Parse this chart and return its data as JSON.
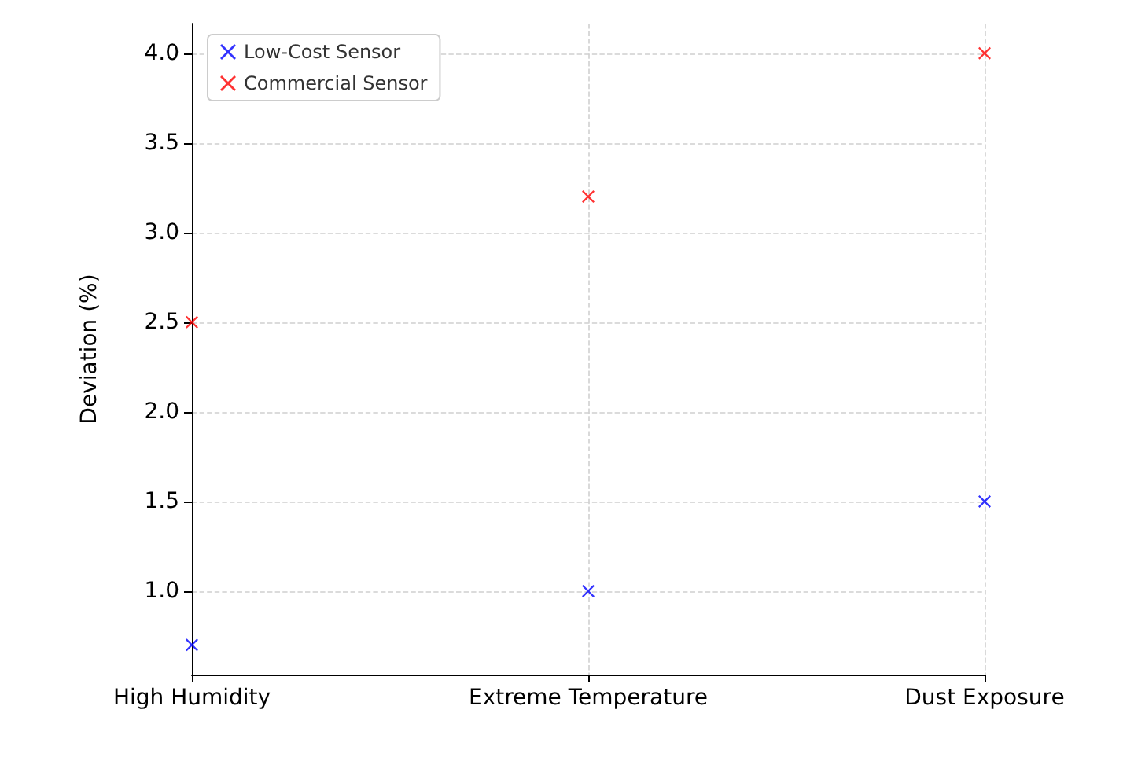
{
  "chart_data": {
    "type": "scatter",
    "ylabel": "Deviation (%)",
    "categories": [
      "High Humidity",
      "Extreme Temperature",
      "Dust Exposure"
    ],
    "series": [
      {
        "name": "Low-Cost Sensor",
        "color": "#0000ff",
        "values": [
          0.7,
          1.0,
          1.5
        ]
      },
      {
        "name": "Commercial Sensor",
        "color": "#ff0000",
        "values": [
          2.5,
          3.2,
          4.0
        ]
      }
    ],
    "ylim": [
      0.535,
      4.165
    ],
    "yticks": [
      {
        "value": 1,
        "label": "1.0"
      },
      1.5,
      {
        "value": 2,
        "label": "2.0"
      },
      2.5,
      {
        "value": 3,
        "label": "3.0"
      },
      3.5,
      {
        "value": 4,
        "label": "4.0"
      }
    ],
    "grid": true,
    "legend": "top left",
    "marker": "cross"
  }
}
